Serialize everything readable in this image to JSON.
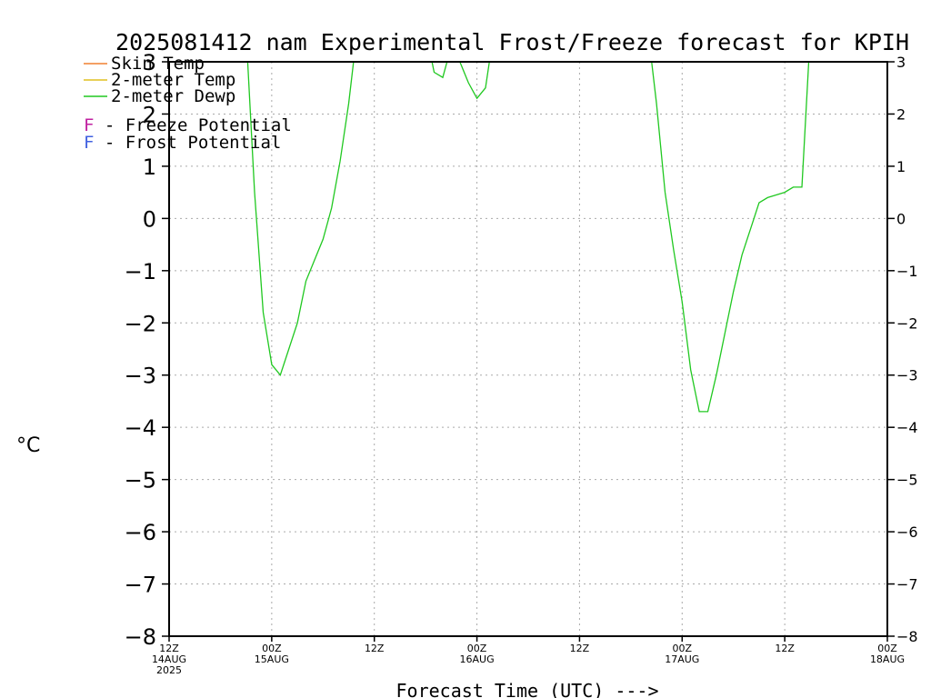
{
  "chart_data": {
    "type": "line",
    "title": "2025081412 nam Experimental Frost/Freeze forecast for KPIH",
    "ylabel": "°C",
    "xlabel": "Forecast Time (UTC) --->",
    "ylim": [
      -8,
      3
    ],
    "xlim_hours": [
      0,
      84
    ],
    "yticks": [
      -8,
      -7,
      -6,
      -5,
      -4,
      -3,
      -2,
      -1,
      0,
      1,
      2,
      3
    ],
    "xticks": [
      {
        "hour": 0,
        "lines": [
          "12Z",
          "14AUG",
          "2025"
        ]
      },
      {
        "hour": 12,
        "lines": [
          "00Z",
          "15AUG"
        ]
      },
      {
        "hour": 24,
        "lines": [
          "12Z"
        ]
      },
      {
        "hour": 36,
        "lines": [
          "00Z",
          "16AUG"
        ]
      },
      {
        "hour": 48,
        "lines": [
          "12Z"
        ]
      },
      {
        "hour": 60,
        "lines": [
          "00Z",
          "17AUG"
        ]
      },
      {
        "hour": 72,
        "lines": [
          "12Z"
        ]
      },
      {
        "hour": 84,
        "lines": [
          "00Z",
          "18AUG"
        ]
      }
    ],
    "grid": true,
    "legend_placement": "top-left",
    "legend": [
      {
        "label": "Skin Temp",
        "color": "#f08030"
      },
      {
        "label": "2-meter Temp",
        "color": "#e0c020"
      },
      {
        "label": "2-meter Dewp",
        "color": "#20c820"
      }
    ],
    "potential_keys": [
      {
        "letter": "F",
        "text": " - Freeze Potential",
        "color": "#c020a0"
      },
      {
        "letter": "F",
        "text": " - Frost Potential",
        "color": "#4060e0"
      }
    ],
    "series": [
      {
        "name": "2-meter Dewp",
        "color": "#20c820",
        "points": [
          [
            9,
            3.6
          ],
          [
            10,
            0.5
          ],
          [
            11,
            -1.8
          ],
          [
            12,
            -2.8
          ],
          [
            13,
            -3.0
          ],
          [
            14,
            -2.5
          ],
          [
            15,
            -2.0
          ],
          [
            16,
            -1.2
          ],
          [
            17,
            -0.8
          ],
          [
            18,
            -0.4
          ],
          [
            19,
            0.2
          ],
          [
            20,
            1.1
          ],
          [
            21,
            2.2
          ],
          [
            22,
            3.6
          ],
          [
            30,
            3.6
          ],
          [
            31,
            2.8
          ],
          [
            32,
            2.7
          ],
          [
            33,
            3.3
          ],
          [
            34,
            3.0
          ],
          [
            35,
            2.6
          ],
          [
            36,
            2.3
          ],
          [
            37,
            2.5
          ],
          [
            38,
            3.6
          ],
          [
            56,
            3.6
          ],
          [
            57,
            2.2
          ],
          [
            58,
            0.5
          ],
          [
            59,
            -0.6
          ],
          [
            60,
            -1.6
          ],
          [
            61,
            -2.9
          ],
          [
            62,
            -3.7
          ],
          [
            63,
            -3.7
          ],
          [
            64,
            -3.0
          ],
          [
            65,
            -2.2
          ],
          [
            66,
            -1.4
          ],
          [
            67,
            -0.7
          ],
          [
            68,
            -0.2
          ],
          [
            69,
            0.3
          ],
          [
            70,
            0.4
          ],
          [
            71,
            0.45
          ],
          [
            72,
            0.5
          ],
          [
            73,
            0.6
          ],
          [
            74,
            0.6
          ],
          [
            75,
            3.6
          ]
        ]
      }
    ]
  }
}
